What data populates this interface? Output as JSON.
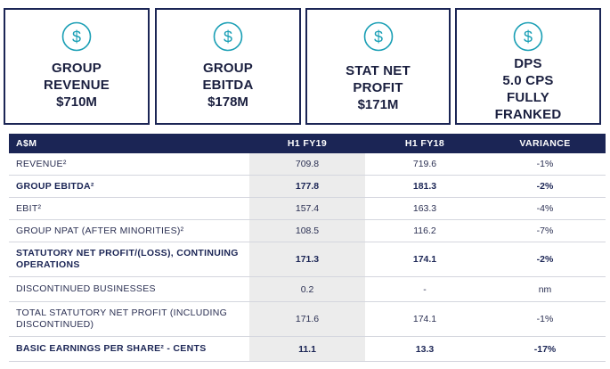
{
  "cards": [
    {
      "icon": "dollar-circle-icon",
      "title": "GROUP\nREVENUE",
      "value": "$710M"
    },
    {
      "icon": "dollar-circle-icon",
      "title": "GROUP\nEBITDA",
      "value": "$178M"
    },
    {
      "icon": "dollar-circle-icon",
      "title": "STAT NET\nPROFIT",
      "value": "$171M"
    },
    {
      "icon": "dollar-circle-icon",
      "title": "DPS\n5.0 CPS\nFULLY\nFRANKED",
      "value": ""
    }
  ],
  "colors": {
    "navy": "#1b2555",
    "accent_teal": "#1a9fb5",
    "highlight": "#ececec"
  },
  "table": {
    "headers": [
      "A$M",
      "H1 FY19",
      "H1 FY18",
      "VARIANCE"
    ],
    "rows": [
      {
        "label": "REVENUE²",
        "h1fy19": "709.8",
        "h1fy18": "719.6",
        "variance": "-1%"
      },
      {
        "label": "GROUP EBITDA²",
        "h1fy19": "177.8",
        "h1fy18": "181.3",
        "variance": "-2%"
      },
      {
        "label": "EBIT²",
        "h1fy19": "157.4",
        "h1fy18": "163.3",
        "variance": "-4%"
      },
      {
        "label": "GROUP NPAT (AFTER MINORITIES)²",
        "h1fy19": "108.5",
        "h1fy18": "116.2",
        "variance": "-7%"
      },
      {
        "label": "STATUTORY NET PROFIT/(LOSS), CONTINUING OPERATIONS",
        "h1fy19": "171.3",
        "h1fy18": "174.1",
        "variance": "-2%"
      },
      {
        "label": "DISCONTINUED BUSINESSES",
        "h1fy19": "0.2",
        "h1fy18": "-",
        "variance": "nm"
      },
      {
        "label": "TOTAL STATUTORY NET PROFIT (INCLUDING DISCONTINUED)",
        "h1fy19": "171.6",
        "h1fy18": "174.1",
        "variance": "-1%"
      },
      {
        "label": "BASIC EARNINGS PER SHARE² - CENTS",
        "h1fy19": "11.1",
        "h1fy18": "13.3",
        "variance": "-17%"
      }
    ]
  }
}
